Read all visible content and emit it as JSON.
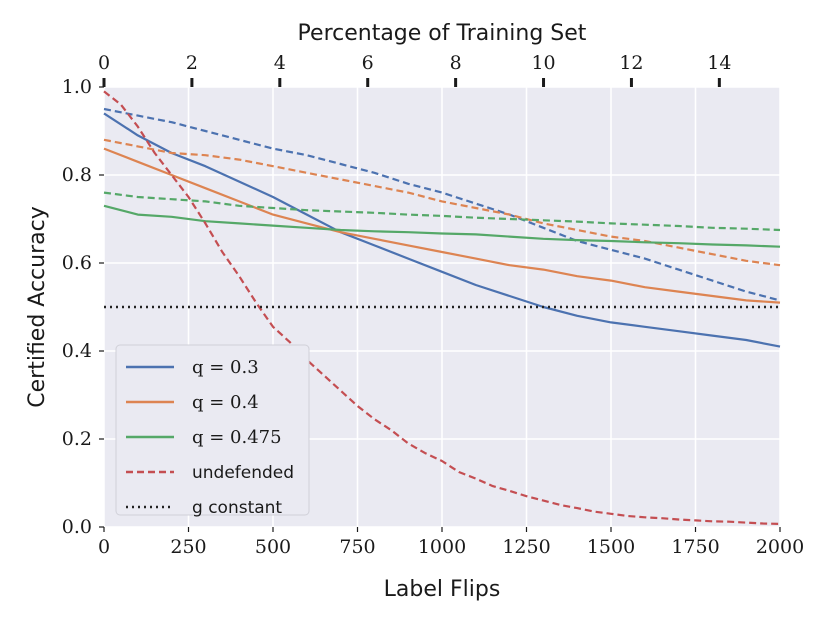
{
  "chart_data": {
    "type": "line",
    "title": "",
    "xlabel": "Label Flips",
    "ylabel": "Certified Accuracy",
    "xlim": [
      0,
      2000
    ],
    "ylim": [
      0,
      1.0
    ],
    "xticks": [
      0,
      250,
      500,
      750,
      1000,
      1250,
      1500,
      1750,
      2000
    ],
    "yticks": [
      0.0,
      0.2,
      0.4,
      0.6,
      0.8,
      1.0
    ],
    "ytick_labels": [
      "0.0",
      "0.2",
      "0.4",
      "0.6",
      "0.8",
      "1.0"
    ],
    "secondary_xaxis": {
      "label": "Percentage of Training Set",
      "ticks": [
        0,
        2,
        4,
        6,
        8,
        10,
        12,
        14
      ],
      "max_value": 15.38
    },
    "grid": true,
    "legend_position": "lower-left",
    "series": [
      {
        "name": "q = 0.3, solid",
        "color": "#4c72b0",
        "style": "solid",
        "x": [
          0,
          100,
          200,
          300,
          400,
          500,
          600,
          700,
          800,
          900,
          1000,
          1100,
          1200,
          1300,
          1400,
          1500,
          1600,
          1700,
          1800,
          1900,
          2000
        ],
        "y": [
          0.94,
          0.89,
          0.85,
          0.82,
          0.785,
          0.75,
          0.71,
          0.67,
          0.64,
          0.61,
          0.58,
          0.55,
          0.525,
          0.5,
          0.48,
          0.465,
          0.455,
          0.445,
          0.435,
          0.425,
          0.41
        ]
      },
      {
        "name": "q = 0.3, dashed",
        "color": "#4c72b0",
        "style": "dashed",
        "x": [
          0,
          100,
          200,
          300,
          400,
          500,
          600,
          700,
          800,
          900,
          1000,
          1100,
          1200,
          1300,
          1400,
          1500,
          1600,
          1700,
          1800,
          1900,
          2000
        ],
        "y": [
          0.95,
          0.935,
          0.92,
          0.9,
          0.88,
          0.86,
          0.845,
          0.825,
          0.805,
          0.78,
          0.76,
          0.735,
          0.71,
          0.68,
          0.65,
          0.63,
          0.61,
          0.585,
          0.56,
          0.535,
          0.515
        ]
      },
      {
        "name": "q = 0.4, solid",
        "color": "#dd8452",
        "style": "solid",
        "x": [
          0,
          100,
          200,
          300,
          400,
          500,
          600,
          700,
          800,
          900,
          1000,
          1100,
          1200,
          1300,
          1400,
          1500,
          1600,
          1700,
          1800,
          1900,
          2000
        ],
        "y": [
          0.86,
          0.83,
          0.8,
          0.77,
          0.74,
          0.71,
          0.69,
          0.67,
          0.655,
          0.64,
          0.625,
          0.61,
          0.595,
          0.585,
          0.57,
          0.56,
          0.545,
          0.535,
          0.525,
          0.515,
          0.51
        ]
      },
      {
        "name": "q = 0.4, dashed",
        "color": "#dd8452",
        "style": "dashed",
        "x": [
          0,
          100,
          200,
          300,
          400,
          500,
          600,
          700,
          800,
          900,
          1000,
          1100,
          1200,
          1300,
          1400,
          1500,
          1600,
          1700,
          1800,
          1900,
          2000
        ],
        "y": [
          0.88,
          0.865,
          0.85,
          0.845,
          0.835,
          0.82,
          0.805,
          0.79,
          0.775,
          0.76,
          0.74,
          0.725,
          0.71,
          0.69,
          0.675,
          0.66,
          0.65,
          0.635,
          0.62,
          0.605,
          0.595
        ]
      },
      {
        "name": "q = 0.475, solid",
        "color": "#55a868",
        "style": "solid",
        "x": [
          0,
          100,
          200,
          300,
          400,
          500,
          600,
          700,
          800,
          900,
          1000,
          1100,
          1200,
          1300,
          1400,
          1500,
          1600,
          1700,
          1800,
          1900,
          2000
        ],
        "y": [
          0.73,
          0.71,
          0.705,
          0.695,
          0.69,
          0.685,
          0.68,
          0.675,
          0.672,
          0.67,
          0.667,
          0.665,
          0.66,
          0.655,
          0.652,
          0.65,
          0.647,
          0.645,
          0.642,
          0.64,
          0.637
        ]
      },
      {
        "name": "q = 0.475, dashed",
        "color": "#55a868",
        "style": "dashed",
        "x": [
          0,
          100,
          200,
          300,
          400,
          500,
          600,
          700,
          800,
          900,
          1000,
          1100,
          1200,
          1300,
          1400,
          1500,
          1600,
          1700,
          1800,
          1900,
          2000
        ],
        "y": [
          0.76,
          0.75,
          0.745,
          0.74,
          0.73,
          0.725,
          0.72,
          0.717,
          0.714,
          0.71,
          0.707,
          0.703,
          0.7,
          0.697,
          0.694,
          0.69,
          0.687,
          0.684,
          0.68,
          0.678,
          0.675
        ]
      },
      {
        "name": "undefended",
        "color": "#c44e52",
        "style": "dashed",
        "x": [
          0,
          50,
          100,
          150,
          200,
          250,
          300,
          350,
          400,
          450,
          500,
          550,
          600,
          650,
          700,
          750,
          800,
          850,
          900,
          950,
          1000,
          1050,
          1100,
          1150,
          1200,
          1250,
          1300,
          1350,
          1400,
          1450,
          1500,
          1550,
          1600,
          1650,
          1700,
          1750,
          1800,
          1850,
          1900,
          1950,
          2000
        ],
        "y": [
          0.99,
          0.96,
          0.91,
          0.85,
          0.8,
          0.75,
          0.69,
          0.625,
          0.57,
          0.51,
          0.455,
          0.42,
          0.38,
          0.345,
          0.31,
          0.275,
          0.245,
          0.22,
          0.19,
          0.168,
          0.15,
          0.125,
          0.11,
          0.093,
          0.082,
          0.07,
          0.06,
          0.05,
          0.043,
          0.035,
          0.03,
          0.025,
          0.022,
          0.02,
          0.017,
          0.015,
          0.013,
          0.012,
          0.01,
          0.008,
          0.007
        ]
      },
      {
        "name": "g constant",
        "color": "#222222",
        "style": "dotted",
        "x": [
          0,
          2000
        ],
        "y": [
          0.5,
          0.5
        ]
      }
    ],
    "legend": [
      {
        "label": "q = 0.3",
        "color": "#4c72b0",
        "style": "solid"
      },
      {
        "label": "q = 0.4",
        "color": "#dd8452",
        "style": "solid"
      },
      {
        "label": "q = 0.475",
        "color": "#55a868",
        "style": "solid"
      },
      {
        "label": "undefended",
        "color": "#c44e52",
        "style": "dashed"
      },
      {
        "label": "g constant",
        "color": "#222222",
        "style": "dotted"
      }
    ]
  }
}
